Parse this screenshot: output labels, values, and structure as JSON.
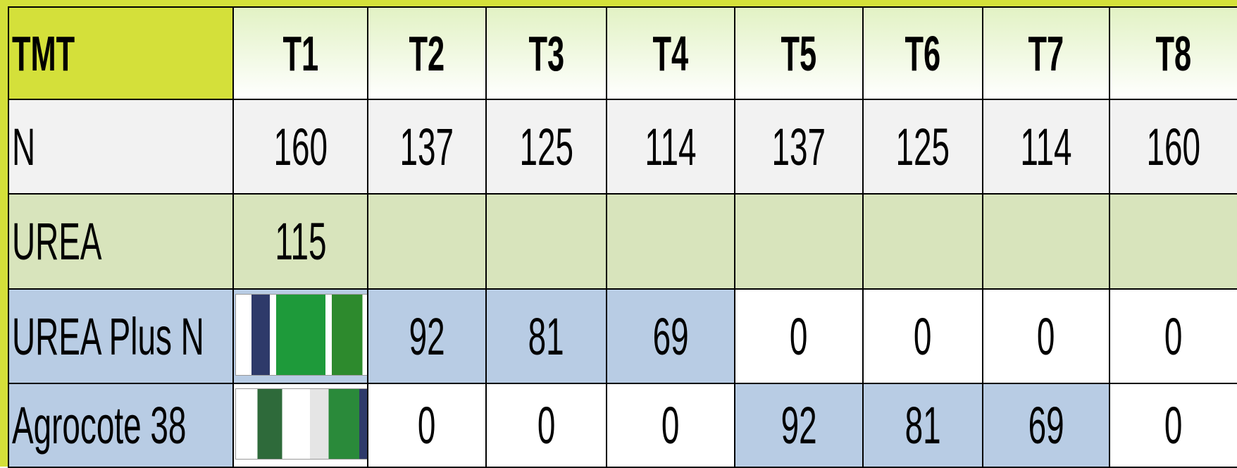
{
  "table": {
    "header": [
      "TMT",
      "T1",
      "T2",
      "T3",
      "T4",
      "T5",
      "T6",
      "T7",
      "T8"
    ],
    "rows": [
      {
        "label": "N",
        "cells": [
          160,
          137,
          125,
          114,
          137,
          125,
          114,
          160
        ]
      },
      {
        "label": "UREA",
        "cells": [
          115,
          null,
          null,
          null,
          null,
          null,
          null,
          null
        ]
      },
      {
        "label": "UREA Plus N",
        "cells": [
          null,
          92,
          81,
          69,
          0,
          0,
          0,
          0
        ]
      },
      {
        "label": "Agrocote 38",
        "cells": [
          null,
          0,
          0,
          0,
          92,
          81,
          69,
          0
        ]
      }
    ]
  }
}
